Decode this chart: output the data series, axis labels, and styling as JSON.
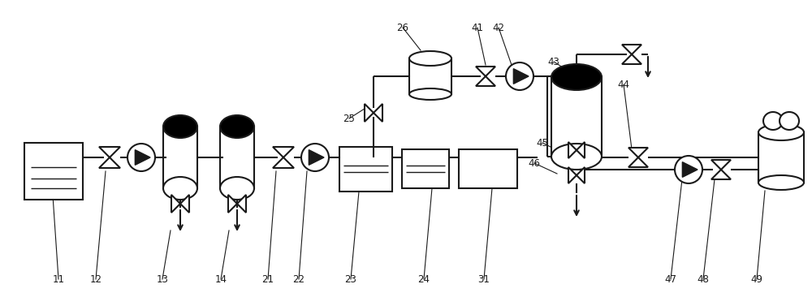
{
  "bg_color": "#ffffff",
  "line_color": "#1a1a1a",
  "lw": 1.5,
  "fig_w": 10.0,
  "fig_h": 3.66,
  "dpi": 100
}
